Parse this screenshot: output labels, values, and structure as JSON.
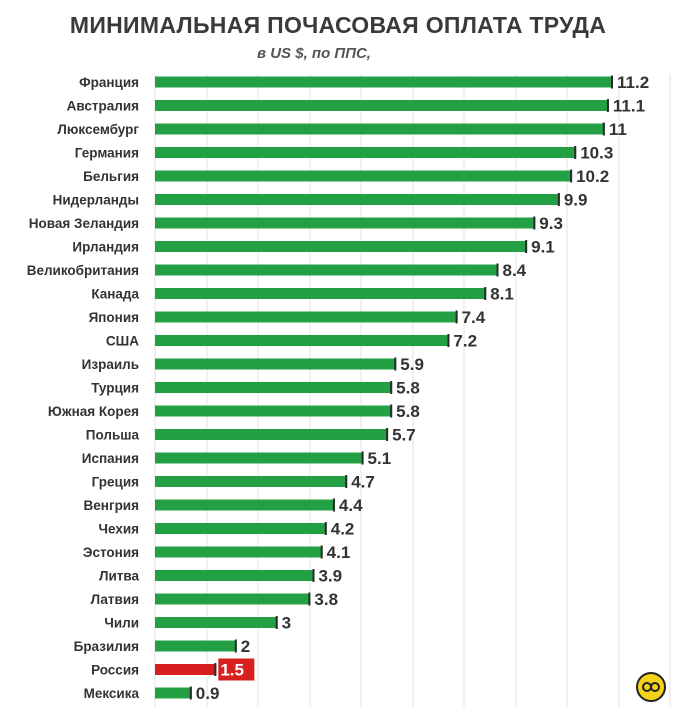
{
  "chart_data": {
    "type": "bar",
    "orientation": "horizontal",
    "title": "МИНИМАЛЬНАЯ ПОЧАСОВАЯ ОПЛАТА ТРУДА",
    "subtitle": "в US $, по ППС,",
    "categories": [
      "Франция",
      "Австралия",
      "Люксембург",
      "Германия",
      "Бельгия",
      "Нидерланды",
      "Новая Зеландия",
      "Ирландия",
      "Великобритания",
      "Канада",
      "Япония",
      "США",
      "Израиль",
      "Турция",
      "Южная Корея",
      "Польша",
      "Испания",
      "Греция",
      "Венгрия",
      "Чехия",
      "Эстония",
      "Литва",
      "Латвия",
      "Чили",
      "Бразилия",
      "Россия",
      "Мексика"
    ],
    "values": [
      11.2,
      11.1,
      11,
      10.3,
      10.2,
      9.9,
      9.3,
      9.1,
      8.4,
      8.1,
      7.4,
      7.2,
      5.9,
      5.8,
      5.8,
      5.7,
      5.1,
      4.7,
      4.4,
      4.2,
      4.1,
      3.9,
      3.8,
      3,
      2,
      1.5,
      0.9
    ],
    "value_labels": [
      "11.2",
      "11.1",
      "11",
      "10.3",
      "10.2",
      "9.9",
      "9.3",
      "9.1",
      "8.4",
      "8.1",
      "7.4",
      "7.2",
      "5.9",
      "5.8",
      "5.8",
      "5.7",
      "5.1",
      "4.7",
      "4.4",
      "4.2",
      "4.1",
      "3.9",
      "3.8",
      "3",
      "2",
      "1.5",
      "0.9"
    ],
    "highlight_category": "Россия",
    "xlim": [
      0,
      11.2
    ],
    "grid": true,
    "legend": "none",
    "colors": {
      "bar": "#22a043",
      "bar_highlight": "#d81f1f",
      "text": "#333333"
    }
  }
}
